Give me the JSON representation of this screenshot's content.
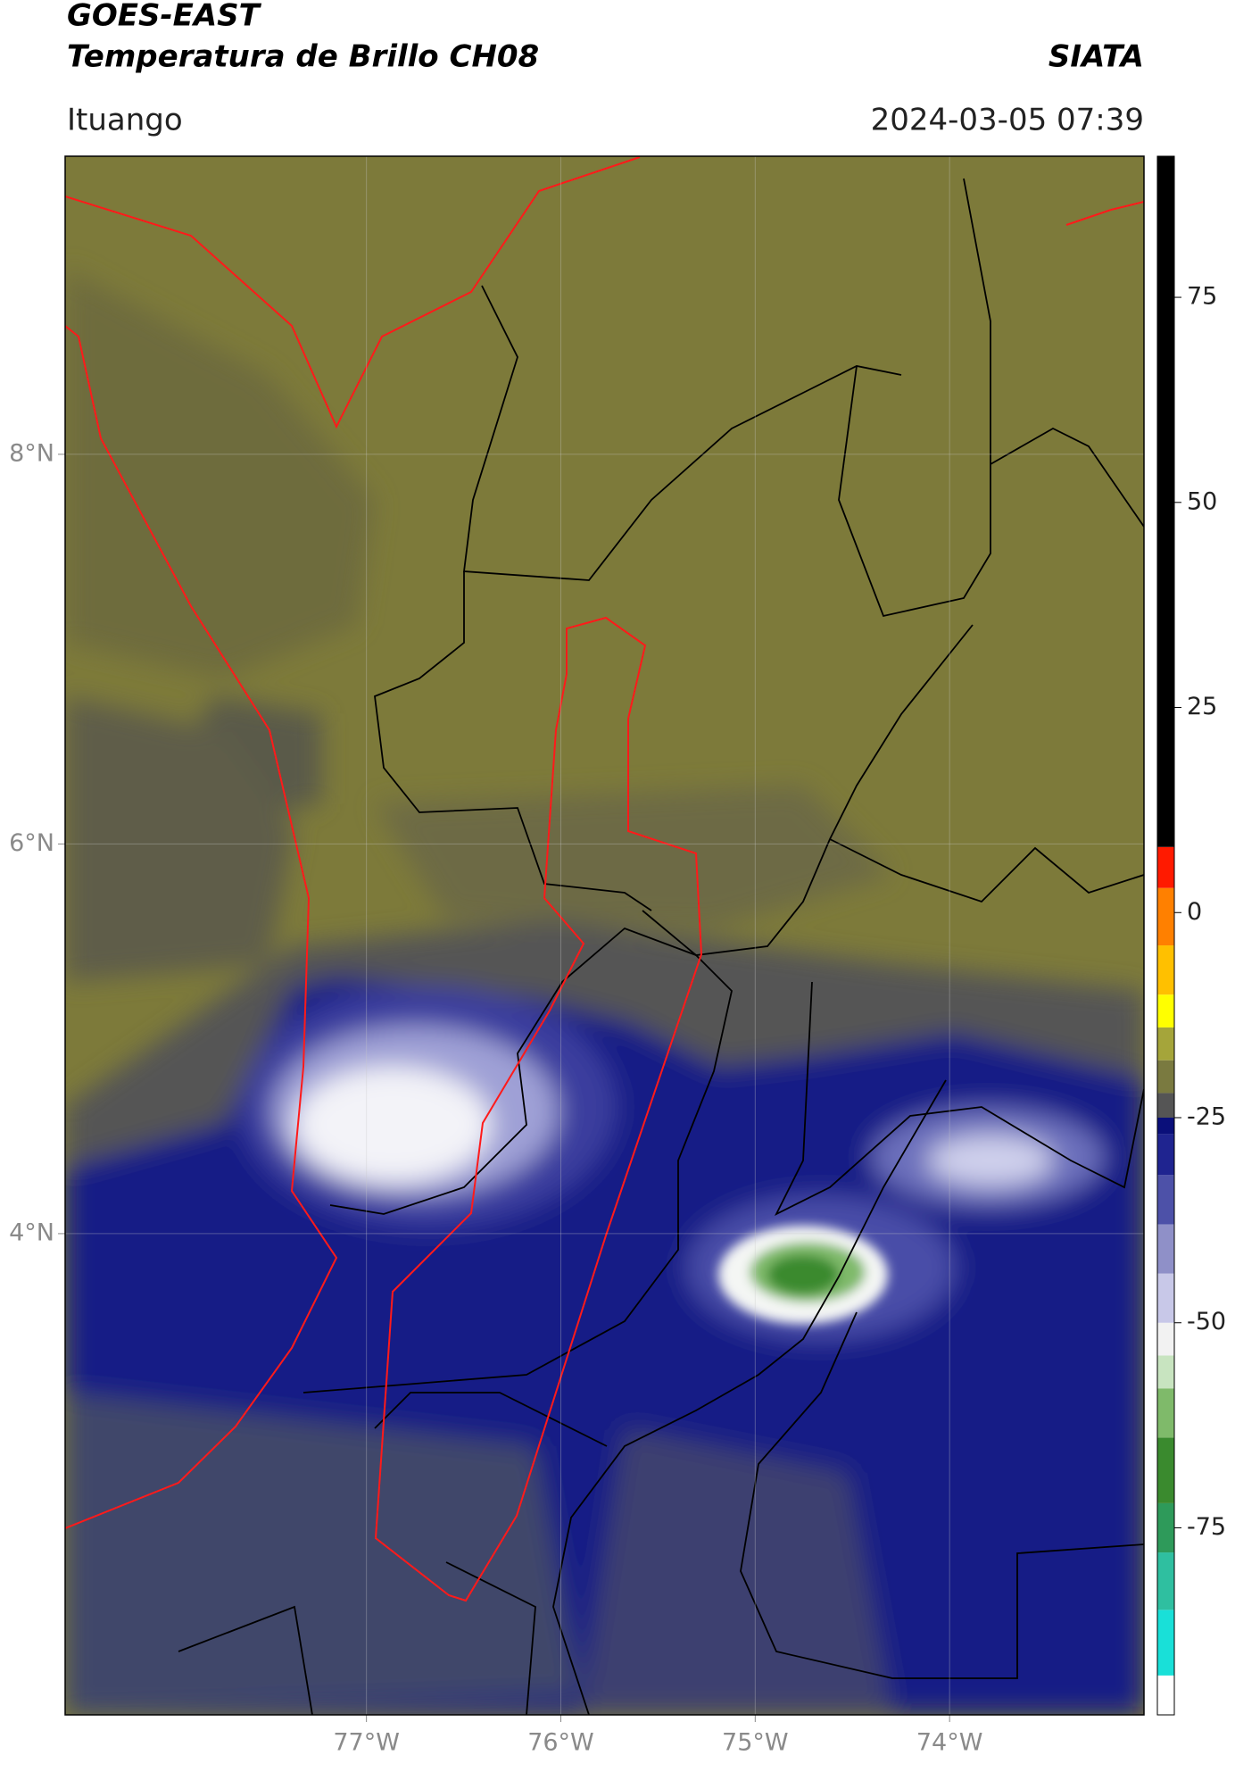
{
  "header": {
    "title": "GOES-EAST",
    "subtitle": "Temperatura de Brillo CH08",
    "brand": "SIATA",
    "location": "Ituango",
    "timestamp": "2024-03-05 07:39"
  },
  "chart_data": {
    "type": "map",
    "xlim": [
      -78.55,
      -73.0
    ],
    "ylim": [
      1.53,
      9.53
    ],
    "xticks": [
      {
        "value": -77,
        "label": "77°W"
      },
      {
        "value": -76,
        "label": "76°W"
      },
      {
        "value": -75,
        "label": "75°W"
      },
      {
        "value": -74,
        "label": "74°W"
      }
    ],
    "yticks": [
      {
        "value": 8,
        "label": "8°N"
      },
      {
        "value": 6,
        "label": "6°N"
      },
      {
        "value": 4,
        "label": "4°N"
      }
    ],
    "grid": true,
    "colorbar": {
      "clim": [
        -97.8,
        92.2
      ],
      "ticks": [
        75,
        50,
        25,
        0,
        -25,
        -50,
        -75
      ],
      "segments": [
        {
          "from": -97.8,
          "to": -93,
          "color": "#ffffff"
        },
        {
          "from": -93,
          "to": -85,
          "color": "#19e0d8"
        },
        {
          "from": -85,
          "to": -78,
          "color": "#2fbfa0"
        },
        {
          "from": -78,
          "to": -72,
          "color": "#2e9a5a"
        },
        {
          "from": -72,
          "to": -64,
          "color": "#3a8a2e"
        },
        {
          "from": -64,
          "to": -58,
          "color": "#7fba6a"
        },
        {
          "from": -58,
          "to": -54,
          "color": "#c8e4c0"
        },
        {
          "from": -54,
          "to": -50,
          "color": "#f2f2f2"
        },
        {
          "from": -50,
          "to": -44,
          "color": "#c8c8e8"
        },
        {
          "from": -44,
          "to": -38,
          "color": "#8f90c8"
        },
        {
          "from": -38,
          "to": -32,
          "color": "#4d51a8"
        },
        {
          "from": -32,
          "to": -27,
          "color": "#1f2490"
        },
        {
          "from": -27,
          "to": -25,
          "color": "#0a0f7a"
        },
        {
          "from": -25,
          "to": -22,
          "color": "#555555"
        },
        {
          "from": -22,
          "to": -18,
          "color": "#7a7a40"
        },
        {
          "from": -18,
          "to": -14,
          "color": "#a5a53a"
        },
        {
          "from": -14,
          "to": -10,
          "color": "#ffff00"
        },
        {
          "from": -10,
          "to": -4,
          "color": "#ffc000"
        },
        {
          "from": -4,
          "to": 3,
          "color": "#ff8000"
        },
        {
          "from": 3,
          "to": 8,
          "color": "#ff1a00"
        },
        {
          "from": 8,
          "to": 92.2,
          "color": "#000000"
        }
      ]
    }
  }
}
